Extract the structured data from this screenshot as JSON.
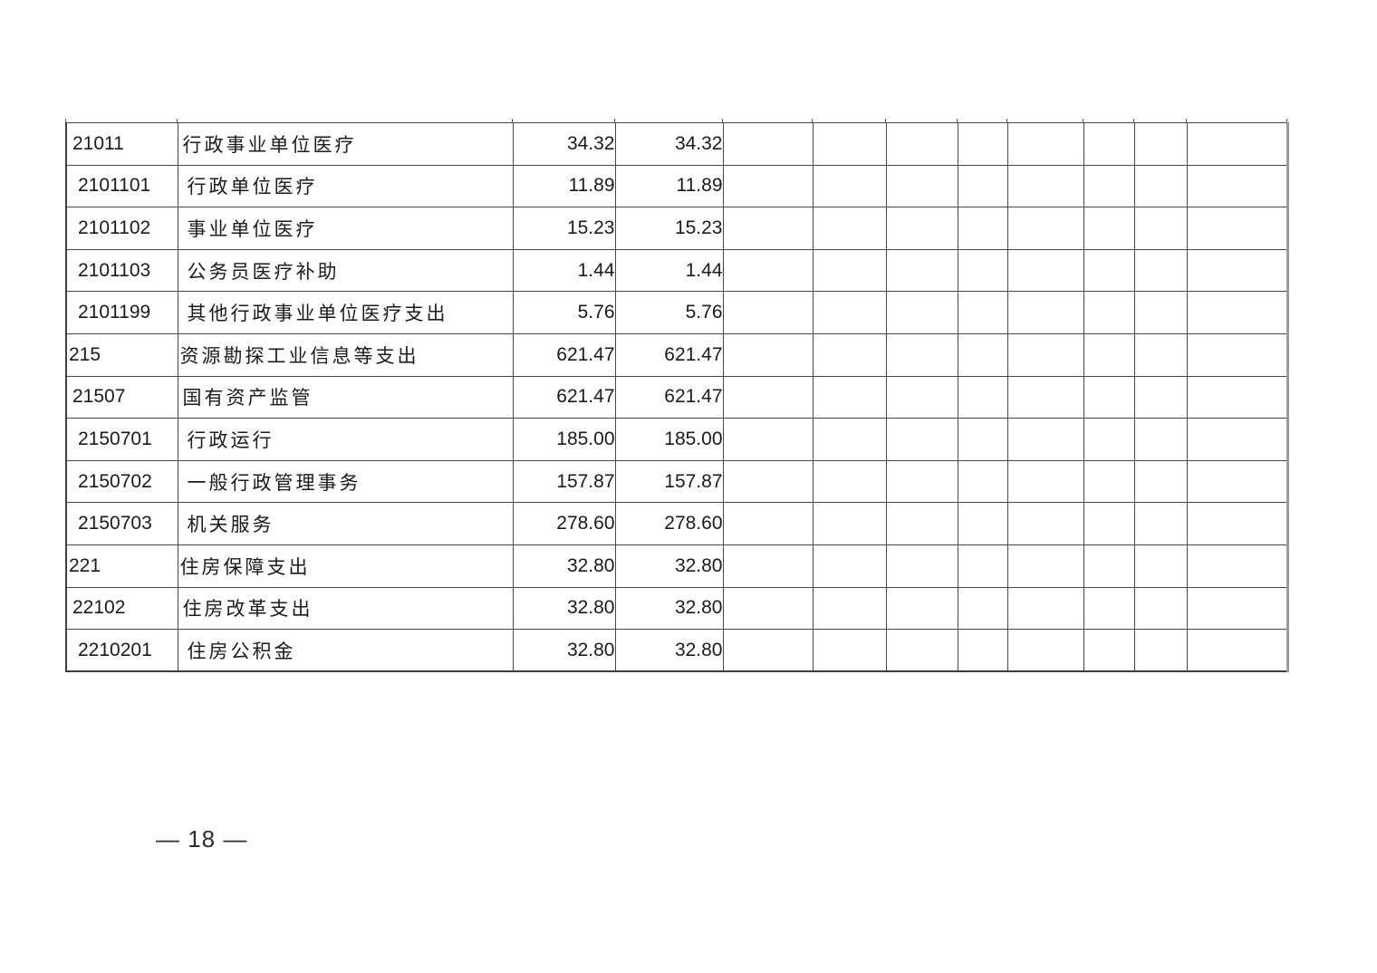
{
  "page": {
    "number_label": "— 18 —"
  },
  "table": {
    "empty_column_count": 8,
    "rows": [
      {
        "code": "21011",
        "name": "行政事业单位医疗",
        "level": 2,
        "amount1": "34.32",
        "amount2": "34.32"
      },
      {
        "code": "2101101",
        "name": "行政单位医疗",
        "level": 3,
        "amount1": "11.89",
        "amount2": "11.89"
      },
      {
        "code": "2101102",
        "name": "事业单位医疗",
        "level": 3,
        "amount1": "15.23",
        "amount2": "15.23"
      },
      {
        "code": "2101103",
        "name": "公务员医疗补助",
        "level": 3,
        "amount1": "1.44",
        "amount2": "1.44"
      },
      {
        "code": "2101199",
        "name": "其他行政事业单位医疗支出",
        "level": 3,
        "amount1": "5.76",
        "amount2": "5.76"
      },
      {
        "code": "215",
        "name": "资源勘探工业信息等支出",
        "level": 1,
        "amount1": "621.47",
        "amount2": "621.47"
      },
      {
        "code": "21507",
        "name": "国有资产监管",
        "level": 2,
        "amount1": "621.47",
        "amount2": "621.47"
      },
      {
        "code": "2150701",
        "name": "行政运行",
        "level": 3,
        "amount1": "185.00",
        "amount2": "185.00"
      },
      {
        "code": "2150702",
        "name": "一般行政管理事务",
        "level": 3,
        "amount1": "157.87",
        "amount2": "157.87"
      },
      {
        "code": "2150703",
        "name": "机关服务",
        "level": 3,
        "amount1": "278.60",
        "amount2": "278.60"
      },
      {
        "code": "221",
        "name": "住房保障支出",
        "level": 1,
        "amount1": "32.80",
        "amount2": "32.80"
      },
      {
        "code": "22102",
        "name": "住房改革支出",
        "level": 2,
        "amount1": "32.80",
        "amount2": "32.80"
      },
      {
        "code": "2210201",
        "name": "住房公积金",
        "level": 3,
        "amount1": "32.80",
        "amount2": "32.80"
      }
    ]
  }
}
